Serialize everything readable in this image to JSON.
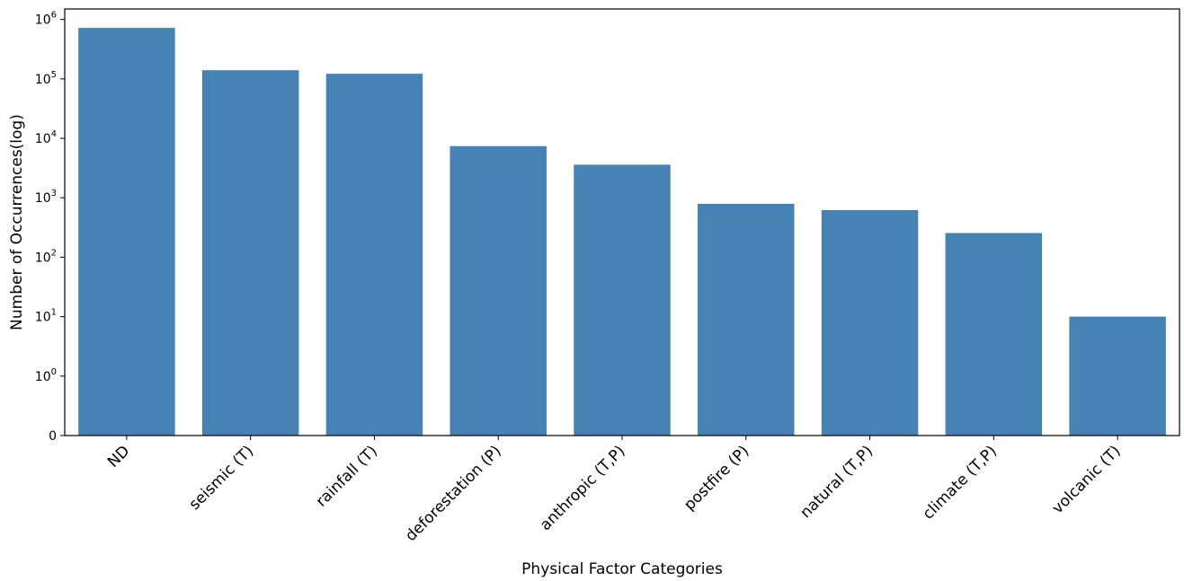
{
  "chart_data": {
    "type": "bar",
    "title": "",
    "xlabel": "Physical Factor Categories",
    "ylabel": "Number of Occurrences(log)",
    "yscale": "symlog",
    "ylim": [
      0,
      1500000
    ],
    "grid": false,
    "legend": false,
    "bar_color": "#4682b4",
    "categories": [
      "ND",
      "seismic (T)",
      "rainfall (T)",
      "deforestation (P)",
      "anthropic (T,P)",
      "postfire (P)",
      "natural (T,P)",
      "climate (T,P)",
      "volcanic (T)"
    ],
    "values": [
      720000,
      140000,
      122000,
      7400,
      3600,
      790,
      620,
      255,
      10
    ],
    "yticks": [
      {
        "base": "0",
        "exp": ""
      },
      {
        "base": "10",
        "exp": "0"
      },
      {
        "base": "10",
        "exp": "1"
      },
      {
        "base": "10",
        "exp": "2"
      },
      {
        "base": "10",
        "exp": "3"
      },
      {
        "base": "10",
        "exp": "4"
      },
      {
        "base": "10",
        "exp": "5"
      },
      {
        "base": "10",
        "exp": "6"
      }
    ]
  }
}
